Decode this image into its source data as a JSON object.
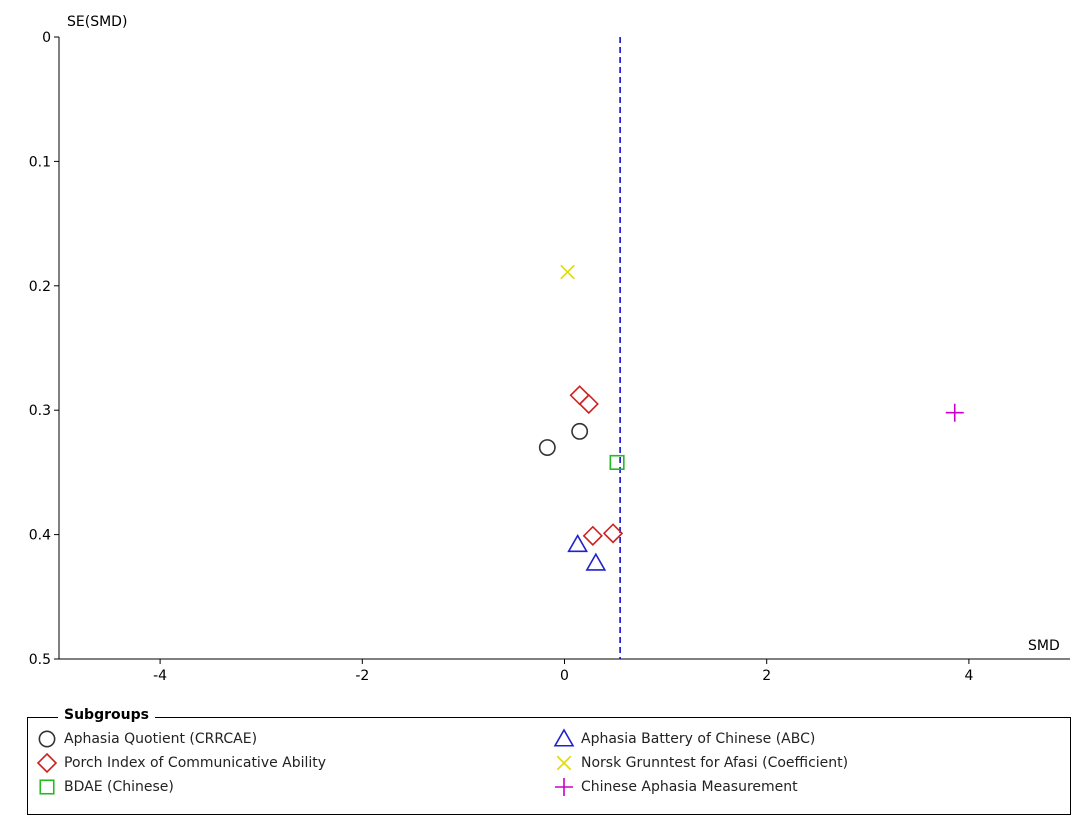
{
  "chart_data": {
    "type": "scatter",
    "title": "",
    "xlabel": "SMD",
    "ylabel": "SE(SMD)",
    "xlim": [
      -5,
      5
    ],
    "ylim": [
      0,
      0.5
    ],
    "y_inverted": true,
    "x_ticks": [
      "-4",
      "-2",
      "0",
      "2",
      "4"
    ],
    "x_tick_values": [
      -4,
      -2,
      0,
      2,
      4
    ],
    "y_ticks": [
      "0",
      "0.1",
      "0.2",
      "0.3",
      "0.4",
      "0.5"
    ],
    "y_tick_values": [
      0,
      0.1,
      0.2,
      0.3,
      0.4,
      0.5
    ],
    "reference_line": {
      "x": 0.55,
      "style": "dashed",
      "color": "#0000cc"
    },
    "legend_title": "Subgroups",
    "legend_position": "bottom",
    "series": [
      {
        "name": "Aphasia Quotient (CRRCAE)",
        "marker": "circle",
        "color": "#333333",
        "points": [
          [
            0.15,
            0.317
          ],
          [
            -0.17,
            0.33
          ]
        ]
      },
      {
        "name": "Porch Index of Communicative Ability",
        "marker": "diamond",
        "color": "#cc2222",
        "points": [
          [
            0.15,
            0.288
          ],
          [
            0.24,
            0.295
          ],
          [
            0.28,
            0.401
          ],
          [
            0.48,
            0.399
          ]
        ]
      },
      {
        "name": "BDAE (Chinese)",
        "marker": "square",
        "color": "#22bb22",
        "points": [
          [
            0.52,
            0.342
          ]
        ]
      },
      {
        "name": "Aphasia Battery of Chinese (ABC)",
        "marker": "triangle",
        "color": "#2222cc",
        "points": [
          [
            0.13,
            0.408
          ],
          [
            0.31,
            0.423
          ]
        ]
      },
      {
        "name": "Norsk Grunntest for Afasi (Coefficient)",
        "marker": "x",
        "color": "#dddd00",
        "points": [
          [
            0.03,
            0.189
          ]
        ]
      },
      {
        "name": "Chinese Aphasia Measurement",
        "marker": "plus",
        "color": "#cc00cc",
        "points": [
          [
            3.86,
            0.302
          ]
        ]
      }
    ]
  }
}
